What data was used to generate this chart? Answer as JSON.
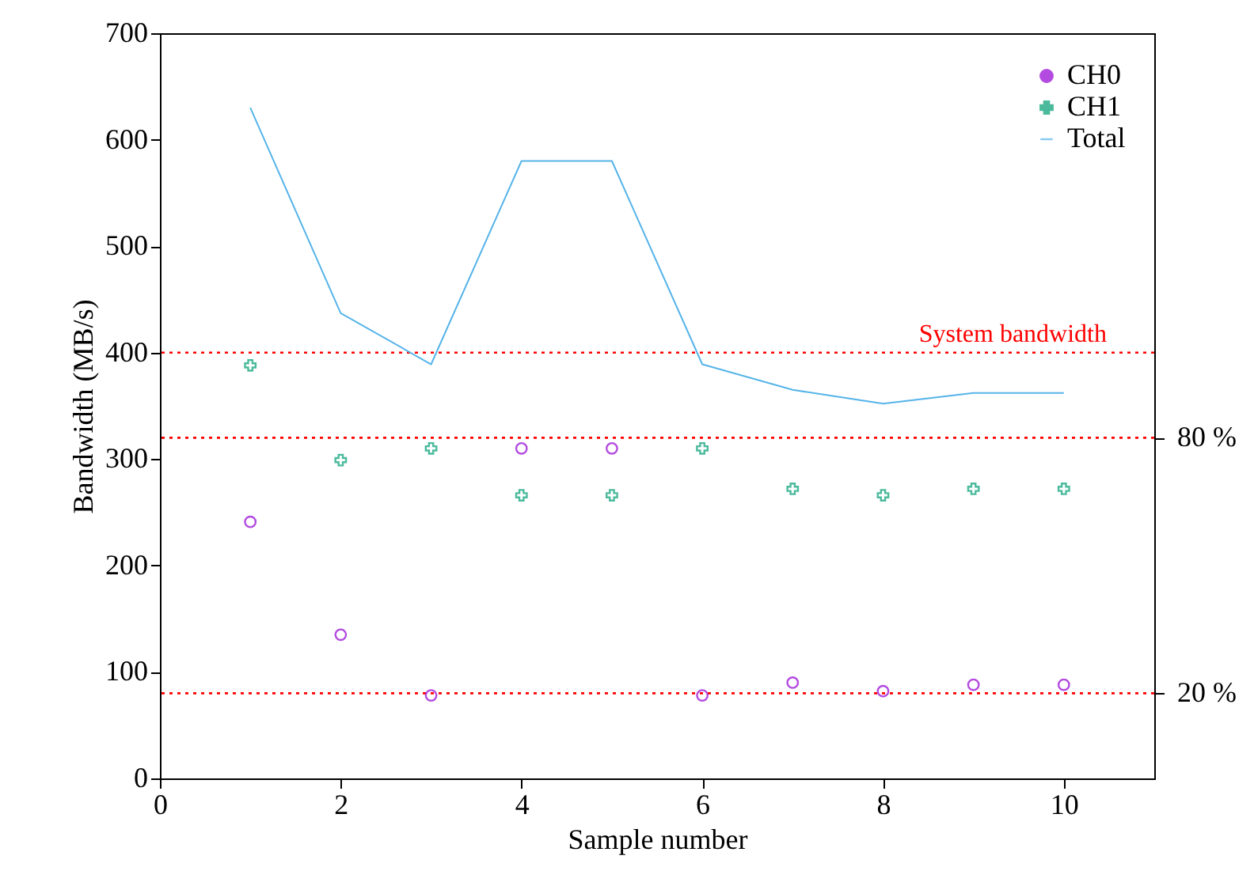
{
  "chart_data": {
    "type": "scatter",
    "xlabel": "Sample number",
    "ylabel": "Bandwidth (MB/s)",
    "x": [
      1,
      2,
      3,
      4,
      5,
      6,
      7,
      8,
      9,
      10
    ],
    "series": [
      {
        "name": "CH0",
        "marker": "circle",
        "color": "#9400d3",
        "values": [
          241,
          135,
          78,
          310,
          310,
          78,
          90,
          82,
          88,
          88
        ]
      },
      {
        "name": "CH1",
        "marker": "cross",
        "color": "#009e73",
        "values": [
          388,
          299,
          310,
          266,
          266,
          310,
          272,
          266,
          272,
          272
        ]
      },
      {
        "name": "Total",
        "type": "line",
        "color": "#56b4e9",
        "values": [
          630,
          437,
          389,
          580,
          580,
          389,
          365,
          352,
          362,
          362
        ]
      }
    ],
    "xlim": [
      0,
      11
    ],
    "xticks": [
      0,
      2,
      4,
      6,
      8,
      10
    ],
    "ylim": [
      0,
      700
    ],
    "yticks": [
      0,
      100,
      200,
      300,
      400,
      500,
      600,
      700
    ],
    "y2lim": [
      0,
      175
    ],
    "y2ticks": [
      {
        "value": 20,
        "label": "20 %"
      },
      {
        "value": 80,
        "label": "80 %"
      }
    ],
    "ref_lines": [
      {
        "axis": "y",
        "value": 400,
        "label": "System bandwidth",
        "color": "#ff0000",
        "line_style": "dotted"
      },
      {
        "axis": "y",
        "value": 320,
        "color": "#ff0000",
        "line_style": "dotted"
      },
      {
        "axis": "y",
        "value": 80,
        "color": "#ff0000",
        "line_style": "dotted"
      }
    ],
    "grid": false,
    "legend": "top right"
  }
}
